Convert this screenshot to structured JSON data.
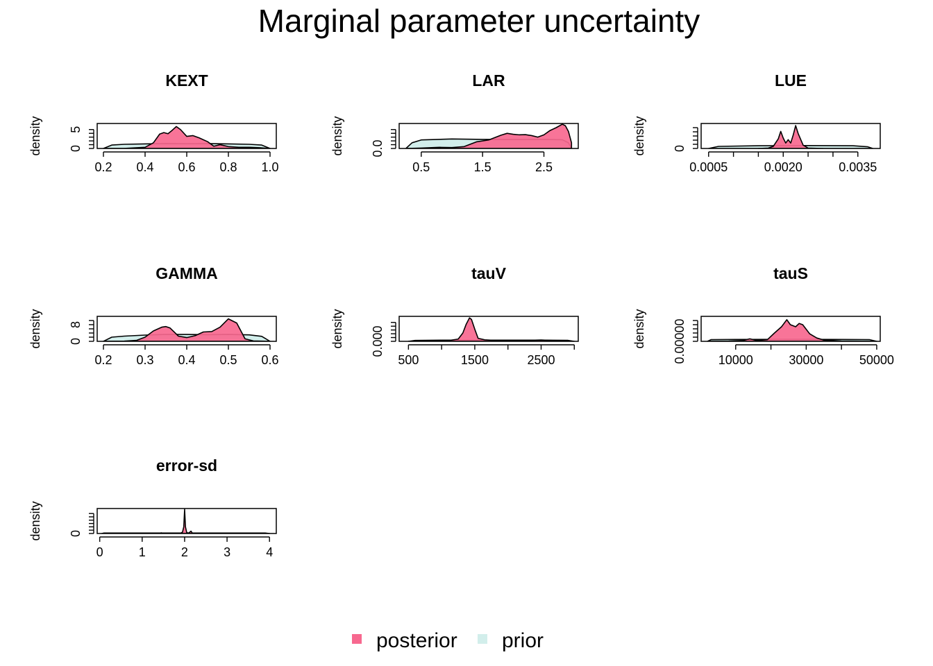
{
  "figure": {
    "title": "Marginal parameter uncertainty"
  },
  "colors": {
    "posterior": "#F7688F",
    "prior": "#D2EEEB",
    "overlap": "#C97A8E",
    "stroke": "#000000"
  },
  "legend": {
    "items": [
      {
        "label": "posterior",
        "color": "#F7688F"
      },
      {
        "label": "prior",
        "color": "#D2EEEB"
      }
    ]
  },
  "chart_data": [
    {
      "type": "area",
      "title": "KEXT",
      "ylabel": "density",
      "xlim": [
        0.17,
        1.03
      ],
      "ylim": [
        0,
        6.6
      ],
      "xticks": [
        0.2,
        0.4,
        0.6,
        0.8,
        1.0
      ],
      "xtick_labels": [
        "0.2",
        "0.4",
        "0.6",
        "0.8",
        "1.0"
      ],
      "yticks": [
        0,
        1,
        2,
        3,
        4,
        5
      ],
      "ytick_labels": [
        "0",
        "",
        "",
        "",
        "",
        "5"
      ],
      "series": [
        {
          "name": "prior",
          "x": [
            0.2,
            0.24,
            0.3,
            0.4,
            0.5,
            0.6,
            0.7,
            0.8,
            0.9,
            0.96,
            1.0
          ],
          "y": [
            0,
            0.9,
            1.1,
            1.2,
            1.3,
            1.25,
            1.3,
            1.2,
            1.1,
            0.9,
            0
          ]
        },
        {
          "name": "posterior",
          "x": [
            0.2,
            0.3,
            0.4,
            0.44,
            0.47,
            0.49,
            0.51,
            0.53,
            0.55,
            0.57,
            0.6,
            0.63,
            0.66,
            0.7,
            0.73,
            0.76,
            0.8,
            0.85,
            0.9,
            0.95,
            1.0
          ],
          "y": [
            0,
            0.02,
            0.3,
            1.5,
            3.8,
            4.2,
            3.9,
            4.8,
            5.8,
            5,
            3.2,
            3.4,
            2.8,
            1.8,
            0.6,
            1.0,
            0.5,
            0.3,
            0.3,
            0.2,
            0
          ]
        }
      ]
    },
    {
      "type": "area",
      "title": "LAR",
      "ylabel": "density",
      "xlim": [
        0.14,
        3.06
      ],
      "ylim": [
        0,
        1.32
      ],
      "xticks": [
        0.5,
        1.5,
        2.5
      ],
      "xtick_labels": [
        "0.5",
        "1.5",
        "2.5"
      ],
      "yticks": [
        0,
        0.2,
        0.4,
        0.6,
        0.8,
        1.0
      ],
      "ytick_labels": [
        "0.0",
        "",
        "",
        "",
        "",
        ""
      ],
      "series": [
        {
          "name": "prior",
          "x": [
            0.25,
            0.35,
            0.5,
            1.0,
            1.5,
            2.0,
            2.5,
            2.8,
            2.9,
            2.95
          ],
          "y": [
            0,
            0.3,
            0.45,
            0.5,
            0.48,
            0.47,
            0.48,
            0.46,
            0.3,
            0
          ]
        },
        {
          "name": "posterior",
          "x": [
            0.25,
            0.5,
            0.8,
            1.0,
            1.2,
            1.4,
            1.6,
            1.8,
            1.9,
            2.0,
            2.1,
            2.2,
            2.3,
            2.4,
            2.5,
            2.6,
            2.7,
            2.8,
            2.85,
            2.9,
            2.95
          ],
          "y": [
            0,
            0.02,
            0.06,
            0.05,
            0.1,
            0.35,
            0.45,
            0.7,
            0.8,
            0.75,
            0.72,
            0.73,
            0.68,
            0.6,
            0.72,
            0.95,
            1.1,
            1.28,
            1.2,
            0.9,
            0.3
          ]
        }
      ]
    },
    {
      "type": "area",
      "title": "LUE",
      "ylabel": "density",
      "xlim": [
        0.00035,
        0.00395
      ],
      "ylim": [
        0,
        6
      ],
      "xticks": [
        0.0005,
        0.001,
        0.0015,
        0.002,
        0.0025,
        0.003,
        0.0035
      ],
      "xtick_labels": [
        "0.0005",
        "",
        "",
        "0.0020",
        "",
        "",
        "0.0035"
      ],
      "yticks": [
        0,
        1,
        2,
        3,
        4,
        5
      ],
      "ytick_labels": [
        "0",
        "",
        "",
        "",
        "",
        ""
      ],
      "series": [
        {
          "name": "prior",
          "x": [
            0.0005,
            0.0007,
            0.0015,
            0.0025,
            0.0034,
            0.0037,
            0.0038
          ],
          "y": [
            0,
            0.5,
            0.65,
            0.7,
            0.65,
            0.4,
            0
          ]
        },
        {
          "name": "posterior",
          "x": [
            0.0015,
            0.0017,
            0.0018,
            0.0019,
            0.00195,
            0.002,
            0.00205,
            0.0021,
            0.00215,
            0.0022,
            0.00225,
            0.0023,
            0.0024,
            0.0025,
            0.0028
          ],
          "y": [
            0,
            0.1,
            0.5,
            2.3,
            4.1,
            2.5,
            1.3,
            2.1,
            1.3,
            3.2,
            5.5,
            3.6,
            0.8,
            0.1,
            0
          ]
        }
      ]
    },
    {
      "type": "area",
      "title": "GAMMA",
      "ylabel": "density",
      "xlim": [
        0.185,
        0.615
      ],
      "ylim": [
        0,
        12
      ],
      "xticks": [
        0.2,
        0.3,
        0.4,
        0.5,
        0.6
      ],
      "xtick_labels": [
        "0.2",
        "0.3",
        "0.4",
        "0.5",
        "0.6"
      ],
      "yticks": [
        0,
        2,
        4,
        6,
        8,
        10
      ],
      "ytick_labels": [
        "0",
        "",
        "",
        "",
        "8",
        ""
      ],
      "series": [
        {
          "name": "prior",
          "x": [
            0.2,
            0.22,
            0.25,
            0.3,
            0.35,
            0.4,
            0.45,
            0.5,
            0.55,
            0.58,
            0.6
          ],
          "y": [
            0,
            2,
            2.5,
            3,
            3.3,
            3.3,
            3.2,
            3.3,
            3.1,
            2.4,
            0
          ]
        },
        {
          "name": "posterior",
          "x": [
            0.2,
            0.25,
            0.28,
            0.3,
            0.32,
            0.34,
            0.35,
            0.36,
            0.38,
            0.4,
            0.42,
            0.44,
            0.46,
            0.48,
            0.5,
            0.52,
            0.54,
            0.56,
            0.6
          ],
          "y": [
            0,
            0.1,
            0.5,
            2,
            5,
            6.8,
            7.1,
            6.4,
            2.5,
            1.8,
            2.7,
            4.5,
            4.7,
            6.8,
            10.8,
            8.8,
            1.2,
            0.2,
            0
          ]
        }
      ]
    },
    {
      "type": "area",
      "title": "tauV",
      "ylabel": "density",
      "xlim": [
        360,
        3060
      ],
      "ylim": [
        0,
        0.0066
      ],
      "xticks": [
        500,
        1000,
        1500,
        2000,
        2500,
        3000
      ],
      "xtick_labels": [
        "500",
        "",
        "1500",
        "",
        "2500",
        ""
      ],
      "yticks": [
        0,
        0.001,
        0.002,
        0.003,
        0.004,
        0.005
      ],
      "ytick_labels": [
        "0.000",
        "",
        "",
        "",
        "",
        ""
      ],
      "series": [
        {
          "name": "prior",
          "x": [
            500,
            600,
            1000,
            1500,
            2000,
            2500,
            2900,
            3000
          ],
          "y": [
            0,
            0.00025,
            0.0003,
            0.00032,
            0.0003,
            0.00031,
            0.00026,
            0
          ]
        },
        {
          "name": "posterior",
          "x": [
            500,
            800,
            1100,
            1250,
            1320,
            1370,
            1420,
            1450,
            1500,
            1550,
            1650,
            1800,
            2000,
            2300,
            2500,
            2700,
            3000
          ],
          "y": [
            0,
            0.0001,
            0.0002,
            0.0006,
            0.0022,
            0.0045,
            0.0062,
            0.0058,
            0.0032,
            0.0008,
            0.0004,
            0.00025,
            0.0002,
            0.00025,
            0.00035,
            0.0002,
            0
          ]
        }
      ]
    },
    {
      "type": "area",
      "title": "tauS",
      "ylabel": "density",
      "xlim": [
        200,
        51000
      ],
      "ylim": [
        0,
        6e-05
      ],
      "xticks": [
        10000,
        20000,
        30000,
        40000,
        50000
      ],
      "xtick_labels": [
        "10000",
        "",
        "30000",
        "",
        "50000"
      ],
      "yticks": [
        0,
        1e-05,
        2e-05,
        3e-05,
        4e-05,
        5e-05
      ],
      "ytick_labels": [
        "0.00000",
        "",
        "",
        "",
        "",
        ""
      ],
      "series": [
        {
          "name": "prior",
          "x": [
            2000,
            3000,
            10000,
            20000,
            30000,
            40000,
            48000,
            50000
          ],
          "y": [
            0,
            4e-06,
            4.5e-06,
            4.8e-06,
            4.7e-06,
            4.6e-06,
            4e-06,
            0
          ]
        },
        {
          "name": "posterior",
          "x": [
            2000,
            8000,
            12000,
            14000,
            16000,
            19000,
            21000,
            23000,
            24500,
            25500,
            27000,
            28000,
            29000,
            31000,
            33000,
            35000,
            40000,
            50000
          ],
          "y": [
            0,
            5e-07,
            2e-06,
            6e-06,
            2e-06,
            4e-06,
            2e-05,
            3.5e-05,
            5.2e-05,
            4e-05,
            3.5e-05,
            4.3e-05,
            4e-05,
            1.8e-05,
            8e-06,
            3e-06,
            1e-06,
            0
          ]
        }
      ]
    },
    {
      "type": "area",
      "title": "error-sd",
      "ylabel": "density",
      "xlim": [
        -0.06,
        4.16
      ],
      "ylim": [
        0,
        150
      ],
      "xticks": [
        0,
        1,
        2,
        3,
        4
      ],
      "xtick_labels": [
        "0",
        "1",
        "2",
        "3",
        "4"
      ],
      "yticks": [
        0,
        20,
        40,
        60,
        80,
        100,
        120
      ],
      "ytick_labels": [
        "0",
        "",
        "",
        "",
        "",
        "",
        ""
      ],
      "series": [
        {
          "name": "prior",
          "x": [
            0.05,
            0.1,
            1,
            2,
            3,
            3.9,
            4.0
          ],
          "y": [
            0,
            3,
            3,
            3,
            3,
            3,
            0
          ]
        },
        {
          "name": "posterior",
          "x": [
            0.05,
            1.4,
            1.45,
            1.5,
            1.9,
            1.95,
            1.98,
            2.0,
            2.02,
            2.05,
            2.1,
            2.15,
            2.18,
            2.25,
            2.5,
            4.0
          ],
          "y": [
            0,
            0.5,
            4,
            0.5,
            1,
            8,
            40,
            145,
            40,
            5,
            3,
            14,
            3,
            1,
            0.5,
            0
          ]
        }
      ]
    }
  ]
}
